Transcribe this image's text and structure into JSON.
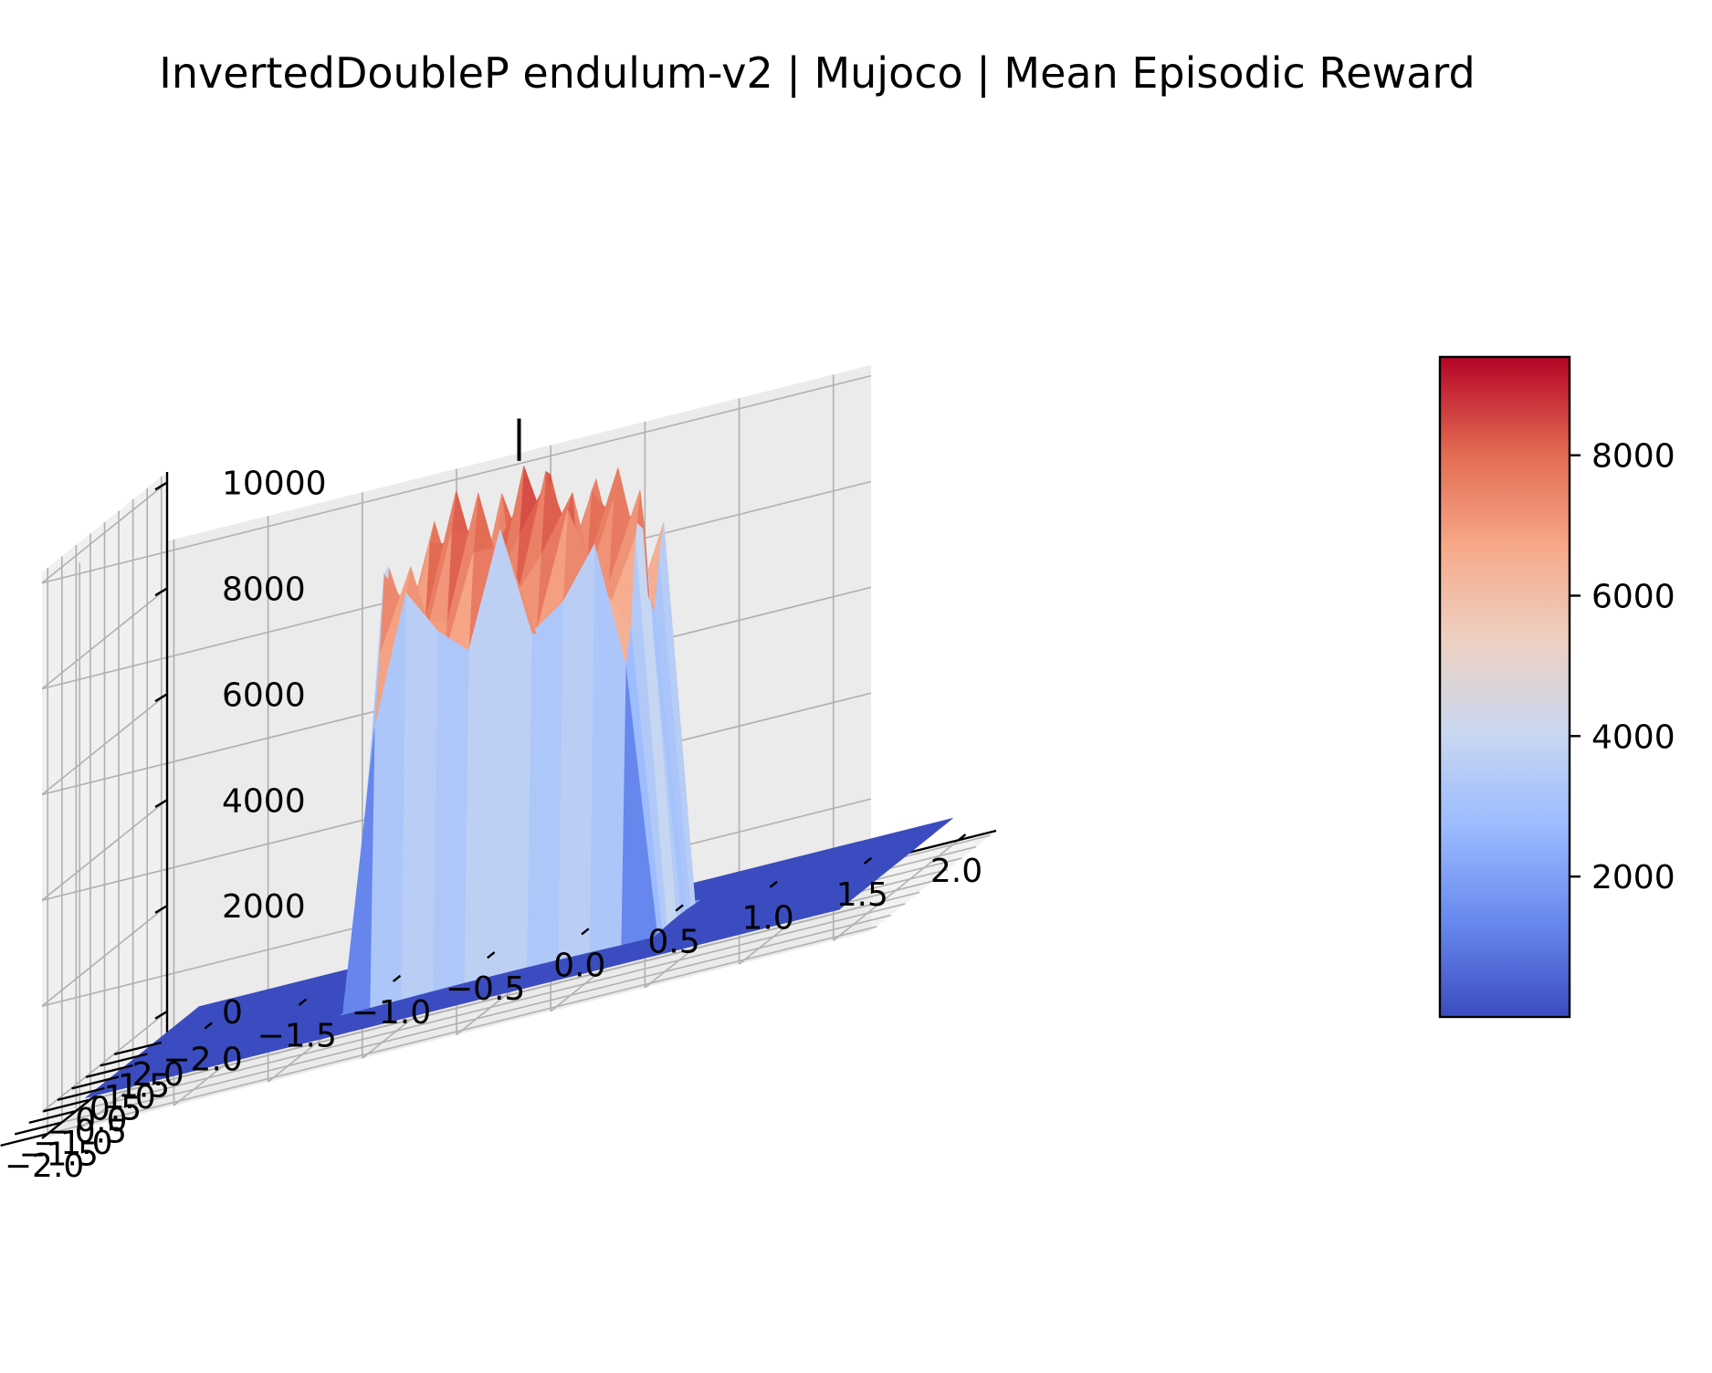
{
  "chart_data": {
    "type": "surface",
    "title": "InvertedDoubleP endulum-v2 | Mujoco | Mean Episodic Reward",
    "xlabel": "",
    "ylabel": "",
    "zlabel": "",
    "x_ticks": [
      "−2.0",
      "−1.5",
      "−1.0",
      "−0.5",
      "0.0",
      "0.5",
      "1.0",
      "1.5",
      "2.0"
    ],
    "y_ticks": [
      "−2.0",
      "−1.5",
      "−1.0",
      "−0.5",
      "0.0",
      "0.5",
      "1.0",
      "1.5",
      "2.0"
    ],
    "z_ticks": [
      "0",
      "2000",
      "4000",
      "6000",
      "8000",
      "10000"
    ],
    "xlim": [
      -2.2,
      2.2
    ],
    "ylim": [
      -2.2,
      2.2
    ],
    "zlim": [
      -500,
      10200
    ],
    "colormap": "coolwarm",
    "colorbar": {
      "ticks": [
        "2000",
        "4000",
        "6000",
        "8000"
      ],
      "range": [
        0,
        9400
      ],
      "colors": [
        "#3b4cc0",
        "#6788ee",
        "#9abbff",
        "#c9d7f0",
        "#edd1c2",
        "#f7a889",
        "#e26952",
        "#b40426"
      ]
    },
    "peak_marker": {
      "x": 0.0,
      "y": 0.0,
      "z_from": 9400,
      "z_to": 10200
    },
    "surface_peak": {
      "x_range": [
        -0.75,
        0.75
      ],
      "y_range": [
        -0.75,
        0.75
      ],
      "z_max": 9400,
      "z_floor": 0
    },
    "grid": true
  }
}
